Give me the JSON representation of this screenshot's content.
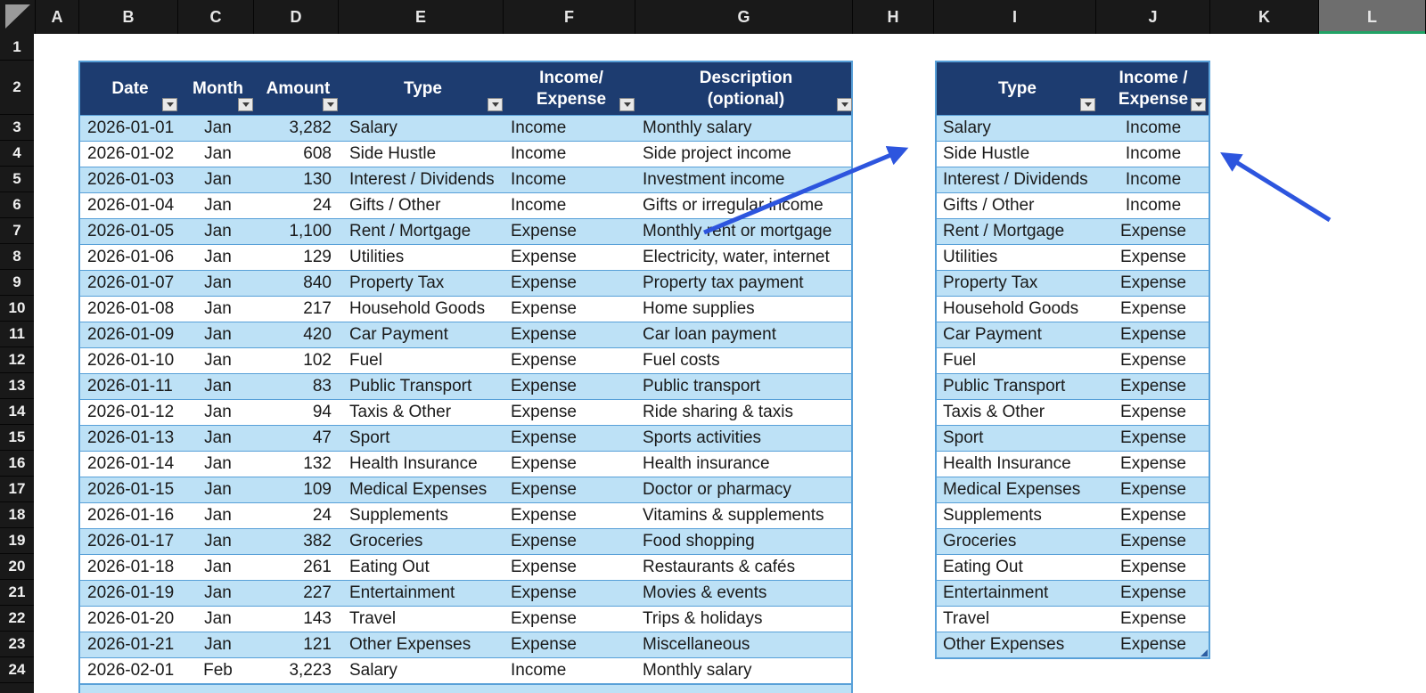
{
  "colors": {
    "chrome-bg": "#191919",
    "chrome-sel-bg": "#6e6e6e",
    "chrome-underline": "#21A366",
    "hdr-bg": "#1D3C70",
    "band": "#BDE1F6",
    "row-line": "#58A0D8",
    "arrow": "#2D55DE"
  },
  "chrome": {
    "column_letters": [
      "A",
      "B",
      "C",
      "D",
      "E",
      "F",
      "G",
      "H",
      "I",
      "J",
      "K",
      "L"
    ],
    "selected_column": "L",
    "row_numbers": [
      "1",
      "2",
      "3",
      "4",
      "5",
      "6",
      "7",
      "8",
      "9",
      "10",
      "11",
      "12",
      "13",
      "14",
      "15",
      "16",
      "17",
      "18",
      "19",
      "20",
      "21",
      "22",
      "23",
      "24"
    ]
  },
  "main_table": {
    "headers": {
      "date": "Date",
      "month": "Month",
      "amount": "Amount",
      "type": "Type",
      "income_expense": "Income/\nExpense",
      "description": "Description\n(optional)"
    },
    "rows": [
      {
        "date": "2026-01-01",
        "month": "Jan",
        "amount": "3,282",
        "type": "Salary",
        "income_expense": "Income",
        "description": "Monthly salary"
      },
      {
        "date": "2026-01-02",
        "month": "Jan",
        "amount": "608",
        "type": "Side Hustle",
        "income_expense": "Income",
        "description": "Side project income"
      },
      {
        "date": "2026-01-03",
        "month": "Jan",
        "amount": "130",
        "type": "Interest / Dividends",
        "income_expense": "Income",
        "description": "Investment income"
      },
      {
        "date": "2026-01-04",
        "month": "Jan",
        "amount": "24",
        "type": "Gifts / Other",
        "income_expense": "Income",
        "description": "Gifts or irregular income"
      },
      {
        "date": "2026-01-05",
        "month": "Jan",
        "amount": "1,100",
        "type": "Rent / Mortgage",
        "income_expense": "Expense",
        "description": "Monthly rent or mortgage"
      },
      {
        "date": "2026-01-06",
        "month": "Jan",
        "amount": "129",
        "type": "Utilities",
        "income_expense": "Expense",
        "description": "Electricity, water, internet"
      },
      {
        "date": "2026-01-07",
        "month": "Jan",
        "amount": "840",
        "type": "Property Tax",
        "income_expense": "Expense",
        "description": "Property tax payment"
      },
      {
        "date": "2026-01-08",
        "month": "Jan",
        "amount": "217",
        "type": "Household Goods",
        "income_expense": "Expense",
        "description": "Home supplies"
      },
      {
        "date": "2026-01-09",
        "month": "Jan",
        "amount": "420",
        "type": "Car Payment",
        "income_expense": "Expense",
        "description": "Car loan payment"
      },
      {
        "date": "2026-01-10",
        "month": "Jan",
        "amount": "102",
        "type": "Fuel",
        "income_expense": "Expense",
        "description": "Fuel costs"
      },
      {
        "date": "2026-01-11",
        "month": "Jan",
        "amount": "83",
        "type": "Public Transport",
        "income_expense": "Expense",
        "description": "Public transport"
      },
      {
        "date": "2026-01-12",
        "month": "Jan",
        "amount": "94",
        "type": "Taxis & Other",
        "income_expense": "Expense",
        "description": "Ride sharing & taxis"
      },
      {
        "date": "2026-01-13",
        "month": "Jan",
        "amount": "47",
        "type": "Sport",
        "income_expense": "Expense",
        "description": "Sports activities"
      },
      {
        "date": "2026-01-14",
        "month": "Jan",
        "amount": "132",
        "type": "Health Insurance",
        "income_expense": "Expense",
        "description": "Health insurance"
      },
      {
        "date": "2026-01-15",
        "month": "Jan",
        "amount": "109",
        "type": "Medical Expenses",
        "income_expense": "Expense",
        "description": "Doctor or pharmacy"
      },
      {
        "date": "2026-01-16",
        "month": "Jan",
        "amount": "24",
        "type": "Supplements",
        "income_expense": "Expense",
        "description": "Vitamins & supplements"
      },
      {
        "date": "2026-01-17",
        "month": "Jan",
        "amount": "382",
        "type": "Groceries",
        "income_expense": "Expense",
        "description": "Food shopping"
      },
      {
        "date": "2026-01-18",
        "month": "Jan",
        "amount": "261",
        "type": "Eating Out",
        "income_expense": "Expense",
        "description": "Restaurants & cafés"
      },
      {
        "date": "2026-01-19",
        "month": "Jan",
        "amount": "227",
        "type": "Entertainment",
        "income_expense": "Expense",
        "description": "Movies & events"
      },
      {
        "date": "2026-01-20",
        "month": "Jan",
        "amount": "143",
        "type": "Travel",
        "income_expense": "Expense",
        "description": "Trips & holidays"
      },
      {
        "date": "2026-01-21",
        "month": "Jan",
        "amount": "121",
        "type": "Other Expenses",
        "income_expense": "Expense",
        "description": "Miscellaneous"
      },
      {
        "date": "2026-02-01",
        "month": "Feb",
        "amount": "3,223",
        "type": "Salary",
        "income_expense": "Income",
        "description": "Monthly salary"
      }
    ]
  },
  "lookup_table": {
    "headers": {
      "type": "Type",
      "income_expense": "Income /\nExpense"
    },
    "rows": [
      {
        "type": "Salary",
        "income_expense": "Income"
      },
      {
        "type": "Side Hustle",
        "income_expense": "Income"
      },
      {
        "type": "Interest / Dividends",
        "income_expense": "Income"
      },
      {
        "type": "Gifts / Other",
        "income_expense": "Income"
      },
      {
        "type": "Rent / Mortgage",
        "income_expense": "Expense"
      },
      {
        "type": "Utilities",
        "income_expense": "Expense"
      },
      {
        "type": "Property Tax",
        "income_expense": "Expense"
      },
      {
        "type": "Household Goods",
        "income_expense": "Expense"
      },
      {
        "type": "Car Payment",
        "income_expense": "Expense"
      },
      {
        "type": "Fuel",
        "income_expense": "Expense"
      },
      {
        "type": "Public Transport",
        "income_expense": "Expense"
      },
      {
        "type": "Taxis & Other",
        "income_expense": "Expense"
      },
      {
        "type": "Sport",
        "income_expense": "Expense"
      },
      {
        "type": "Health Insurance",
        "income_expense": "Expense"
      },
      {
        "type": "Medical Expenses",
        "income_expense": "Expense"
      },
      {
        "type": "Supplements",
        "income_expense": "Expense"
      },
      {
        "type": "Groceries",
        "income_expense": "Expense"
      },
      {
        "type": "Eating Out",
        "income_expense": "Expense"
      },
      {
        "type": "Entertainment",
        "income_expense": "Expense"
      },
      {
        "type": "Travel",
        "income_expense": "Expense"
      },
      {
        "type": "Other Expenses",
        "income_expense": "Expense"
      }
    ]
  }
}
